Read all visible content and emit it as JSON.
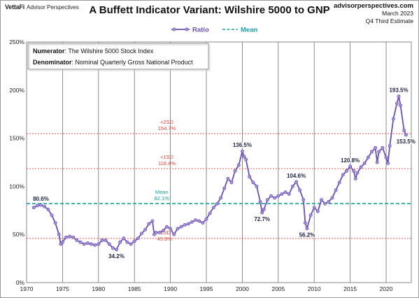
{
  "header": {
    "brand": "VettaFi",
    "brand_sub": "Advisor Perspectives",
    "title": "A Buffett Indicator Variant: Wilshire 5000 to GNP",
    "site": "advisorperspectives.com",
    "date": "March 2023",
    "estimate": "Q4 Third Estimate"
  },
  "note": {
    "numerator_key": "Numerator",
    "numerator_value": ": The Wilshire 5000 Stock Index",
    "denominator_key": "Denominator",
    "denominator_value": ": Nominal Quarterly Gross National Product"
  },
  "colors": {
    "ratio": "#6a4fb3",
    "marker_fill": "#a592d8",
    "mean": "#17a2a2",
    "sd": "#e8413b",
    "grid": "#6f6f6f"
  },
  "chart_data": {
    "type": "line",
    "title": "A Buffett Indicator Variant: Wilshire 5000 to GNP",
    "xlim": [
      1970,
      2023.5
    ],
    "ylim": [
      0,
      250
    ],
    "x_ticks": [
      1970,
      1975,
      1980,
      1985,
      1990,
      1995,
      2000,
      2005,
      2010,
      2015,
      2020
    ],
    "x_tick_labels": [
      "1970",
      "1975",
      "1980",
      "1985",
      "1990",
      "1995",
      "2000",
      "2005",
      "2010",
      "2015",
      "2020"
    ],
    "y_ticks": [
      0,
      50,
      100,
      150,
      200,
      250
    ],
    "y_tick_labels": [
      "0%",
      "50%",
      "100%",
      "150%",
      "200%",
      "250%"
    ],
    "grid": "vertical",
    "legend": {
      "placement": "top-center",
      "entries": [
        "Ratio",
        "Mean"
      ]
    },
    "reference_lines": [
      {
        "name": "+2SD",
        "value": 154.7,
        "label": "154.7%",
        "style": "dotted",
        "color": "#e8413b"
      },
      {
        "name": "+1SD",
        "value": 118.4,
        "label": "118.4%",
        "style": "dotted",
        "color": "#e8413b"
      },
      {
        "name": "Mean",
        "value": 82.1,
        "label": "82.1%",
        "style": "dashed",
        "color": "#17a2a2"
      },
      {
        "name": "-1SD",
        "value": 45.9,
        "label": "45.9%",
        "style": "dotted",
        "color": "#e8413b"
      }
    ],
    "series": [
      {
        "name": "Ratio",
        "points": [
          [
            1971.0,
            78
          ],
          [
            1971.5,
            80
          ],
          [
            1972.0,
            80.6
          ],
          [
            1972.5,
            79
          ],
          [
            1973.0,
            76
          ],
          [
            1973.5,
            70
          ],
          [
            1974.0,
            62
          ],
          [
            1974.5,
            50
          ],
          [
            1974.75,
            40
          ],
          [
            1975.0,
            42
          ],
          [
            1975.5,
            47
          ],
          [
            1976.0,
            48
          ],
          [
            1976.5,
            47
          ],
          [
            1977.0,
            44
          ],
          [
            1977.5,
            42
          ],
          [
            1978.0,
            40
          ],
          [
            1978.5,
            41
          ],
          [
            1979.0,
            40
          ],
          [
            1979.5,
            39
          ],
          [
            1980.0,
            40
          ],
          [
            1980.5,
            44
          ],
          [
            1981.0,
            44
          ],
          [
            1981.5,
            40
          ],
          [
            1982.0,
            36
          ],
          [
            1982.5,
            34.2
          ],
          [
            1983.0,
            42
          ],
          [
            1983.5,
            46
          ],
          [
            1984.0,
            42
          ],
          [
            1984.5,
            40
          ],
          [
            1985.0,
            43
          ],
          [
            1985.5,
            46
          ],
          [
            1986.0,
            51
          ],
          [
            1986.5,
            55
          ],
          [
            1987.0,
            61
          ],
          [
            1987.5,
            64
          ],
          [
            1987.75,
            50
          ],
          [
            1988.0,
            52
          ],
          [
            1988.5,
            52
          ],
          [
            1989.0,
            54
          ],
          [
            1989.5,
            58
          ],
          [
            1990.0,
            56
          ],
          [
            1990.5,
            50
          ],
          [
            1991.0,
            56
          ],
          [
            1991.5,
            58
          ],
          [
            1992.0,
            60
          ],
          [
            1992.5,
            61
          ],
          [
            1993.0,
            63
          ],
          [
            1993.5,
            65
          ],
          [
            1994.0,
            64
          ],
          [
            1994.5,
            62
          ],
          [
            1995.0,
            66
          ],
          [
            1995.5,
            72
          ],
          [
            1996.0,
            78
          ],
          [
            1996.5,
            82
          ],
          [
            1997.0,
            88
          ],
          [
            1997.5,
            98
          ],
          [
            1998.0,
            108
          ],
          [
            1998.5,
            104
          ],
          [
            1999.0,
            116
          ],
          [
            1999.5,
            122
          ],
          [
            2000.0,
            136.5
          ],
          [
            2000.25,
            131
          ],
          [
            2000.5,
            128
          ],
          [
            2001.0,
            110
          ],
          [
            2001.5,
            104
          ],
          [
            2002.0,
            100
          ],
          [
            2002.5,
            84
          ],
          [
            2002.75,
            72.7
          ],
          [
            2003.0,
            76
          ],
          [
            2003.5,
            86
          ],
          [
            2004.0,
            90
          ],
          [
            2004.5,
            88
          ],
          [
            2005.0,
            90
          ],
          [
            2005.5,
            92
          ],
          [
            2006.0,
            94
          ],
          [
            2006.5,
            92
          ],
          [
            2007.0,
            100
          ],
          [
            2007.5,
            104.6
          ],
          [
            2008.0,
            96
          ],
          [
            2008.5,
            86
          ],
          [
            2008.75,
            62
          ],
          [
            2009.0,
            56.2
          ],
          [
            2009.5,
            70
          ],
          [
            2010.0,
            78
          ],
          [
            2010.5,
            74
          ],
          [
            2011.0,
            86
          ],
          [
            2011.5,
            82
          ],
          [
            2012.0,
            84
          ],
          [
            2012.5,
            88
          ],
          [
            2013.0,
            96
          ],
          [
            2013.5,
            104
          ],
          [
            2014.0,
            112
          ],
          [
            2014.5,
            116
          ],
          [
            2015.0,
            120.8
          ],
          [
            2015.5,
            116
          ],
          [
            2015.75,
            108
          ],
          [
            2016.0,
            114
          ],
          [
            2016.5,
            120
          ],
          [
            2017.0,
            124
          ],
          [
            2017.5,
            130
          ],
          [
            2018.0,
            136
          ],
          [
            2018.5,
            140
          ],
          [
            2018.75,
            125
          ],
          [
            2019.0,
            136
          ],
          [
            2019.5,
            140
          ],
          [
            2020.0,
            130
          ],
          [
            2020.25,
            124
          ],
          [
            2020.5,
            142
          ],
          [
            2021.0,
            170
          ],
          [
            2021.5,
            186
          ],
          [
            2021.75,
            193.5
          ],
          [
            2022.0,
            184
          ],
          [
            2022.5,
            158
          ],
          [
            2022.75,
            153.5
          ]
        ]
      },
      {
        "name": "Mean",
        "value": 82.1
      }
    ],
    "annotations": [
      {
        "x": 1972.0,
        "y": 80.6,
        "text": "80.6%",
        "pos": "above"
      },
      {
        "x": 1982.5,
        "y": 34.2,
        "text": "34.2%",
        "pos": "below"
      },
      {
        "x": 2000.0,
        "y": 136.5,
        "text": "136.5%",
        "pos": "above"
      },
      {
        "x": 2002.75,
        "y": 72.7,
        "text": "72.7%",
        "pos": "below"
      },
      {
        "x": 2007.5,
        "y": 104.6,
        "text": "104.6%",
        "pos": "above"
      },
      {
        "x": 2009.0,
        "y": 56.2,
        "text": "56.2%",
        "pos": "below"
      },
      {
        "x": 2015.0,
        "y": 120.8,
        "text": "120.8%",
        "pos": "above"
      },
      {
        "x": 2021.75,
        "y": 193.5,
        "text": "193.5%",
        "pos": "above"
      },
      {
        "x": 2022.75,
        "y": 153.5,
        "text": "153.5%",
        "pos": "below"
      }
    ]
  }
}
